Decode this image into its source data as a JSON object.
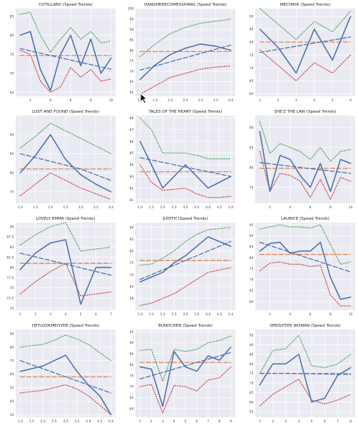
{
  "colors": {
    "background": "#ffffff",
    "plot_bg": "#eaeaf2",
    "grid": "#ffffff",
    "actual": "#4c72b0",
    "trend": "#4c72b0",
    "mean": "#dd8452",
    "upper": "#55a868",
    "lower": "#c44e52"
  },
  "chart_data": [
    {
      "type": "line",
      "title": "COTILLARD (Speed Trends)",
      "x": [
        1,
        2,
        3,
        4,
        5,
        6,
        7,
        8,
        9,
        10
      ],
      "ylim": [
        64,
        87
      ],
      "yticks": [
        65,
        70,
        75,
        80,
        85
      ],
      "xticks": [
        2,
        4,
        6,
        8,
        10
      ],
      "series": [
        {
          "role": "actual",
          "values": [
            80,
            81,
            71,
            65.5,
            75,
            80,
            72,
            79,
            70,
            74
          ]
        },
        {
          "role": "trend",
          "values": [
            76.5,
            75.9,
            75.3,
            74.7,
            74.1,
            73.5,
            72.9,
            72.3,
            71.7,
            71.1
          ]
        },
        {
          "role": "mean",
          "values": [
            74.7,
            74.7,
            74.7,
            74.7,
            74.7,
            74.7,
            74.7,
            74.7,
            74.7,
            74.7
          ]
        },
        {
          "role": "upper",
          "values": [
            85.5,
            86,
            80,
            75.5,
            79,
            82,
            79,
            81,
            78,
            78.5
          ]
        },
        {
          "role": "lower",
          "values": [
            76,
            75,
            68,
            65,
            66.5,
            71.5,
            69,
            71,
            68,
            68.5
          ]
        }
      ]
    },
    {
      "type": "line",
      "title": "DANGHERECOMESSHANG (Speed Trends)",
      "x": [
        1,
        1.5,
        2,
        2.5,
        3,
        3.5,
        4
      ],
      "ylim": [
        58,
        100
      ],
      "yticks": [
        60,
        65,
        70,
        75,
        80,
        85,
        90,
        95,
        100
      ],
      "xticks": [
        1.0,
        1.5,
        2.0,
        2.5,
        3.0,
        3.5,
        4.0
      ],
      "series": [
        {
          "role": "actual",
          "values": [
            66,
            73,
            78,
            81,
            83,
            82,
            80
          ]
        },
        {
          "role": "trend",
          "values": [
            70.5,
            72.5,
            74.5,
            76.5,
            78.5,
            80.5,
            82.5
          ]
        },
        {
          "role": "mean",
          "values": [
            79.5,
            79.5,
            79.5,
            79.5,
            79.5,
            79.5,
            79.5
          ]
        },
        {
          "role": "upper",
          "values": [
            77,
            83,
            88,
            91,
            93,
            94,
            95
          ]
        },
        {
          "role": "lower",
          "values": [
            59,
            63,
            67,
            69,
            71,
            72,
            72.5
          ]
        }
      ]
    },
    {
      "type": "line",
      "title": "MECHAYA (Speed Trends)",
      "x": [
        1,
        2,
        3,
        4,
        5,
        6
      ],
      "ylim": [
        59,
        93
      ],
      "yticks": [
        60,
        65,
        70,
        75,
        80,
        85,
        90
      ],
      "xticks": [
        1,
        2,
        3,
        4,
        5,
        6
      ],
      "series": [
        {
          "role": "actual",
          "values": [
            85,
            78,
            68,
            85,
            73,
            90
          ]
        },
        {
          "role": "trend",
          "values": [
            76,
            77.2,
            78.4,
            79.6,
            80.8,
            82
          ]
        },
        {
          "role": "mean",
          "values": [
            80,
            80,
            80,
            80,
            80,
            80
          ]
        },
        {
          "role": "upper",
          "values": [
            93,
            87,
            81,
            88,
            84,
            92
          ]
        },
        {
          "role": "lower",
          "values": [
            77,
            71,
            65,
            72,
            68,
            75
          ]
        }
      ]
    },
    {
      "type": "line",
      "title": "LOST AND FOUND (Speed Trends)",
      "x": [
        1,
        1.5,
        2,
        2.5,
        3,
        3.5,
        4
      ],
      "ylim": [
        72,
        95
      ],
      "yticks": [
        75,
        80,
        85,
        90
      ],
      "xticks": [
        1.0,
        1.5,
        2.0,
        2.5,
        3.0,
        3.5,
        4.0
      ],
      "series": [
        {
          "role": "actual",
          "values": [
            80,
            84.5,
            90,
            83.5,
            79.5,
            77,
            75
          ]
        },
        {
          "role": "trend",
          "values": [
            85,
            84,
            83,
            82,
            81,
            79.5,
            78
          ]
        },
        {
          "role": "mean",
          "values": [
            81,
            81,
            81,
            81,
            81,
            81,
            81
          ]
        },
        {
          "role": "upper",
          "values": [
            86.5,
            89.5,
            93,
            91,
            89,
            87,
            85
          ]
        },
        {
          "role": "lower",
          "values": [
            74,
            77,
            80,
            78,
            76,
            74.5,
            73
          ]
        }
      ]
    },
    {
      "type": "line",
      "title": "TALES OF THE HEART (Speed Trends)",
      "x": [
        1,
        1.5,
        2,
        2.5,
        3,
        3.5,
        4,
        4.5,
        5
      ],
      "ylim": [
        80.7,
        88.2
      ],
      "yticks": [
        81,
        82,
        83,
        84,
        85,
        86,
        87,
        88
      ],
      "xticks": [
        1.0,
        1.5,
        2.0,
        2.5,
        3.0,
        3.5,
        4.0,
        4.5,
        5.0
      ],
      "series": [
        {
          "role": "actual",
          "values": [
            86,
            84,
            82,
            83,
            84,
            83,
            82,
            82.5,
            83
          ]
        },
        {
          "role": "trend",
          "values": [
            84.6,
            84.4,
            84.2,
            84,
            83.8,
            83.6,
            83.4,
            83.2,
            83
          ]
        },
        {
          "role": "mean",
          "values": [
            83.4,
            83.4,
            83.4,
            83.4,
            83.4,
            83.4,
            83.4,
            83.4,
            83.4
          ]
        },
        {
          "role": "upper",
          "values": [
            88,
            87,
            85,
            85,
            85,
            84.8,
            84.5,
            84.5,
            84.5
          ]
        },
        {
          "role": "lower",
          "values": [
            84,
            82.5,
            81.8,
            81.9,
            82,
            81.5,
            81.2,
            81.2,
            81.3
          ]
        }
      ]
    },
    {
      "type": "line",
      "title": "SHE'Z THE LAW (Speed Trends)",
      "x": [
        1,
        2,
        3,
        4,
        5,
        6,
        7,
        8,
        9,
        10
      ],
      "ylim": [
        71,
        93
      ],
      "yticks": [
        75,
        80,
        85,
        90
      ],
      "xticks": [
        2,
        4,
        6,
        8,
        10
      ],
      "series": [
        {
          "role": "actual",
          "values": [
            89,
            74,
            83,
            82,
            78,
            75,
            81,
            74,
            82,
            81
          ]
        },
        {
          "role": "trend",
          "values": [
            81.2,
            80.9,
            80.6,
            80.3,
            80,
            79.7,
            79.4,
            79.1,
            78.8,
            78.5
          ]
        },
        {
          "role": "mean",
          "values": [
            79.8,
            79.8,
            79.8,
            79.8,
            79.8,
            79.8,
            79.8,
            79.8,
            79.8,
            79.8
          ]
        },
        {
          "role": "upper",
          "values": [
            91.5,
            83.5,
            86,
            85,
            84,
            82,
            85,
            81.5,
            84,
            84.5
          ]
        },
        {
          "role": "lower",
          "values": [
            84,
            74,
            78.5,
            78,
            76.5,
            72.5,
            77,
            72,
            77.5,
            76.5
          ]
        }
      ]
    },
    {
      "type": "line",
      "title": "LOVELY EMMA (Speed Trends)",
      "x": [
        1,
        2,
        3,
        4,
        5,
        6,
        7
      ],
      "ylim": [
        69.5,
        91
      ],
      "yticks": [
        70,
        72.5,
        75,
        77.5,
        80,
        82.5,
        85,
        87.5,
        90
      ],
      "xticks": [
        1,
        2,
        3,
        4,
        5,
        6,
        7
      ],
      "series": [
        {
          "role": "actual",
          "values": [
            79.5,
            83.5,
            86,
            86.8,
            71,
            80,
            80
          ]
        },
        {
          "role": "trend",
          "values": [
            83.5,
            82.6,
            81.7,
            80.8,
            79.9,
            79,
            78.1
          ]
        },
        {
          "role": "mean",
          "values": [
            81,
            81,
            81,
            81,
            81,
            81,
            81
          ]
        },
        {
          "role": "upper",
          "values": [
            85.5,
            88,
            90,
            91,
            84,
            84.5,
            85
          ]
        },
        {
          "role": "lower",
          "values": [
            73.5,
            76.5,
            79,
            81,
            73,
            73.5,
            74
          ]
        }
      ]
    },
    {
      "type": "line",
      "title": "JUDITH (Speed Trends)",
      "x": [
        1,
        1.5,
        2,
        2.5,
        3,
        3.5,
        4,
        4.5,
        5
      ],
      "ylim": [
        55,
        92
      ],
      "yticks": [
        60,
        65,
        70,
        75,
        80,
        85,
        90
      ],
      "xticks": [
        1.0,
        1.5,
        2.0,
        2.5,
        3.0,
        3.5,
        4.0,
        4.5,
        5.0
      ],
      "series": [
        {
          "role": "actual",
          "values": [
            67,
            69,
            71,
            75,
            78,
            82,
            86,
            84,
            82
          ]
        },
        {
          "role": "trend",
          "values": [
            68,
            70,
            72,
            74,
            76,
            78,
            80,
            82,
            84
          ]
        },
        {
          "role": "mean",
          "values": [
            76,
            76,
            76,
            76,
            76,
            76,
            76,
            76,
            76
          ]
        },
        {
          "role": "upper",
          "values": [
            74,
            74.5,
            77,
            80,
            84,
            87,
            89,
            89.5,
            90
          ]
        },
        {
          "role": "lower",
          "values": [
            57,
            58,
            60,
            62,
            65,
            68,
            71,
            72,
            73
          ]
        }
      ]
    },
    {
      "type": "line",
      "title": "LAURICE (Speed Trends)",
      "x": [
        1,
        2,
        3,
        4,
        5,
        6,
        7,
        8,
        9,
        10
      ],
      "ylim": [
        56,
        96
      ],
      "yticks": [
        60,
        65,
        70,
        75,
        80,
        85,
        90,
        95
      ],
      "xticks": [
        2,
        4,
        6,
        8,
        10
      ],
      "series": [
        {
          "role": "actual",
          "values": [
            83,
            86.5,
            87,
            82,
            83,
            83,
            87,
            71,
            61,
            62
          ]
        },
        {
          "role": "trend",
          "values": [
            87,
            85.5,
            84,
            82.5,
            81,
            79.5,
            78,
            76.5,
            75,
            73.5
          ]
        },
        {
          "role": "mean",
          "values": [
            81.5,
            81.5,
            81.5,
            81.5,
            81.5,
            81.5,
            81.5,
            81.5,
            81.5,
            81.5
          ]
        },
        {
          "role": "upper",
          "values": [
            93,
            94,
            95,
            94,
            94,
            93.5,
            95,
            86,
            77,
            78
          ]
        },
        {
          "role": "lower",
          "values": [
            74,
            77.5,
            78,
            77,
            77,
            76,
            76.5,
            63,
            58,
            58
          ]
        }
      ]
    },
    {
      "type": "line",
      "title": "HEYLOOKMEOVER (Speed Trends)",
      "x": [
        1,
        1.5,
        2,
        2.5,
        3,
        3.5,
        4,
        4.5,
        5
      ],
      "ylim": [
        28,
        93
      ],
      "yticks": [
        30,
        40,
        50,
        60,
        70,
        80,
        90
      ],
      "xticks": [
        1.0,
        1.5,
        2.0,
        2.5,
        3.0,
        3.5,
        4.0,
        4.5,
        5.0
      ],
      "series": [
        {
          "role": "actual",
          "values": [
            62,
            64,
            66,
            70,
            74,
            62,
            52,
            44,
            30
          ]
        },
        {
          "role": "trend",
          "values": [
            70,
            67,
            64,
            61,
            58,
            55,
            52,
            49,
            46
          ]
        },
        {
          "role": "mean",
          "values": [
            58,
            58,
            58,
            58,
            58,
            58,
            58,
            58,
            58
          ]
        },
        {
          "role": "upper",
          "values": [
            80,
            81,
            82,
            85,
            89,
            86,
            82,
            76,
            70
          ]
        },
        {
          "role": "lower",
          "values": [
            46,
            47,
            48,
            50,
            52,
            49,
            44,
            37,
            30
          ]
        }
      ]
    },
    {
      "type": "line",
      "title": "BUNDCHEN (Speed Trends)",
      "x": [
        1,
        2,
        3,
        4,
        5,
        6,
        7,
        8,
        9
      ],
      "ylim": [
        56,
        96
      ],
      "yticks": [
        60,
        65,
        70,
        75,
        80,
        85,
        90,
        95
      ],
      "xticks": [
        1,
        2,
        3,
        4,
        5,
        6,
        7,
        8,
        9
      ],
      "series": [
        {
          "role": "actual",
          "values": [
            79,
            78,
            61,
            86,
            79,
            77,
            84,
            82,
            88
          ]
        },
        {
          "role": "trend",
          "values": [
            73.5,
            75,
            76.5,
            78,
            79.5,
            81,
            82.5,
            84,
            85.5
          ]
        },
        {
          "role": "mean",
          "values": [
            81,
            81,
            81,
            81,
            81,
            81,
            81,
            81,
            81
          ]
        },
        {
          "role": "upper",
          "values": [
            86.5,
            87,
            72.5,
            87,
            86,
            87,
            90,
            91,
            93
          ]
        },
        {
          "role": "lower",
          "values": [
            70,
            71,
            58,
            70.5,
            70,
            68,
            73,
            74,
            79
          ]
        }
      ]
    },
    {
      "type": "line",
      "title": "SPEIGHTER WOMAN (Speed Trends)",
      "x": [
        1,
        2,
        3,
        4,
        5,
        6,
        7,
        8
      ],
      "ylim": [
        52,
        98
      ],
      "yticks": [
        55,
        60,
        65,
        70,
        75,
        80,
        85,
        90,
        95
      ],
      "xticks": [
        1,
        2,
        3,
        4,
        5,
        6,
        7,
        8
      ],
      "series": [
        {
          "role": "actual",
          "values": [
            69,
            80,
            80,
            85,
            60,
            62,
            74,
            78
          ]
        },
        {
          "role": "trend",
          "values": [
            75,
            75,
            75,
            74.9,
            74.8,
            74.7,
            74.6,
            74.5
          ]
        },
        {
          "role": "mean",
          "values": [
            75,
            75,
            75,
            75,
            75,
            75,
            75,
            75
          ]
        },
        {
          "role": "upper",
          "values": [
            75,
            87,
            88,
            95,
            79,
            78,
            80,
            85
          ]
        },
        {
          "role": "lower",
          "values": [
            58,
            64,
            68,
            72,
            61,
            59,
            61,
            64
          ]
        }
      ]
    }
  ]
}
